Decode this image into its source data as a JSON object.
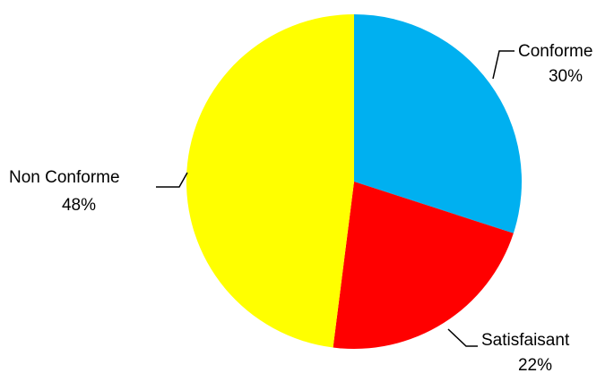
{
  "chart_data": {
    "type": "pie",
    "title": "",
    "start_angle_deg": 0,
    "direction": "clockwise",
    "slices": [
      {
        "label": "Conforme",
        "value": 30,
        "value_label": "30%",
        "color": "#00B0F0"
      },
      {
        "label": "Satisfaisant",
        "value": 22,
        "value_label": "22%",
        "color": "#FF0000"
      },
      {
        "label": "Non Conforme",
        "value": 48,
        "value_label": "48%",
        "color": "#FFFF00"
      }
    ],
    "legend": "none",
    "data_labels": "outside with leader lines"
  }
}
